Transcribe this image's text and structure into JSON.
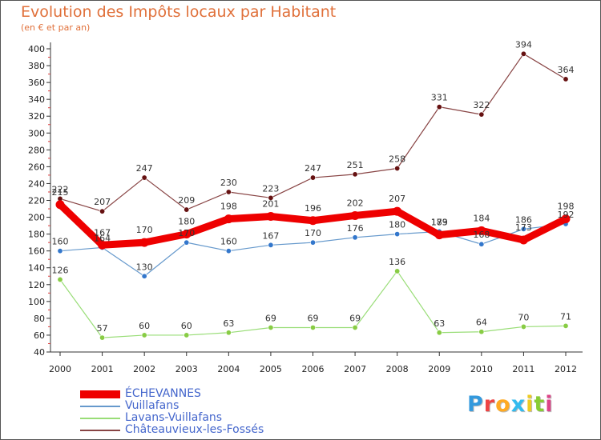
{
  "header": {
    "title": "Evolution des Impôts locaux par Habitant",
    "subtitle": "(en € et par an)"
  },
  "logo": {
    "text": "Proxiti",
    "letter_colors": [
      "#3399dd",
      "#ee4444",
      "#ffaa22",
      "#33bbee",
      "#eecc22",
      "#88cc33",
      "#dd4488"
    ]
  },
  "chart_data": {
    "type": "line",
    "title": "Evolution des Impôts locaux par Habitant",
    "subtitle": "(en € et par an)",
    "xlabel": "",
    "ylabel": "",
    "x": [
      "2000",
      "2001",
      "2002",
      "2003",
      "2004",
      "2005",
      "2006",
      "2007",
      "2008",
      "2009",
      "2010",
      "2011",
      "2012"
    ],
    "ylim": [
      40,
      400
    ],
    "yticks": [
      40,
      60,
      80,
      100,
      120,
      140,
      160,
      180,
      200,
      220,
      240,
      260,
      280,
      300,
      320,
      340,
      360,
      380,
      400
    ],
    "grid": false,
    "legend_position": "bottom-left",
    "series": [
      {
        "name": "ÉCHEVANNES",
        "color": "#ee0000",
        "marker_color": "#ee0000",
        "emphasis": "thick",
        "values": [
          215,
          167,
          170,
          180,
          198,
          201,
          196,
          202,
          207,
          179,
          184,
          173,
          198
        ]
      },
      {
        "name": "Vuillafans",
        "color": "#6699cc",
        "marker_color": "#3377cc",
        "emphasis": "normal",
        "values": [
          160,
          164,
          130,
          170,
          160,
          167,
          170,
          176,
          180,
          183,
          168,
          186,
          192
        ]
      },
      {
        "name": "Lavans-Vuillafans",
        "color": "#99dd77",
        "marker_color": "#88cc44",
        "emphasis": "normal",
        "values": [
          126,
          57,
          60,
          60,
          63,
          69,
          69,
          69,
          136,
          63,
          64,
          70,
          71
        ]
      },
      {
        "name": "Châteauvieux-les-Fossés",
        "color": "#884444",
        "marker_color": "#661111",
        "emphasis": "normal",
        "values": [
          222,
          207,
          247,
          209,
          230,
          223,
          247,
          251,
          258,
          331,
          322,
          394,
          364
        ]
      }
    ],
    "data_labels": [
      {
        "series": 1,
        "index": 0,
        "text": "160",
        "side": "above"
      },
      {
        "series": 0,
        "index": 1,
        "text": "167",
        "side": "above"
      },
      {
        "series": 1,
        "index": 1,
        "text": "164",
        "side": "above"
      },
      {
        "series": 1,
        "index": 2,
        "text": "130",
        "side": "above"
      },
      {
        "series": 1,
        "index": 3,
        "text": "170",
        "side": "above"
      },
      {
        "series": 1,
        "index": 4,
        "text": "160",
        "side": "above"
      },
      {
        "series": 1,
        "index": 5,
        "text": "167",
        "side": "above"
      },
      {
        "series": 1,
        "index": 6,
        "text": "170",
        "side": "above"
      },
      {
        "series": 1,
        "index": 7,
        "text": "176",
        "side": "above"
      },
      {
        "series": 1,
        "index": 8,
        "text": "180",
        "side": "above"
      },
      {
        "series": 1,
        "index": 9,
        "text": "183",
        "side": "above"
      },
      {
        "series": 1,
        "index": 10,
        "text": "168",
        "side": "above"
      },
      {
        "series": 1,
        "index": 11,
        "text": "186",
        "side": "above"
      },
      {
        "series": 1,
        "index": 12,
        "text": "192",
        "side": "above"
      },
      {
        "series": 0,
        "index": 0,
        "text": "215",
        "side": "above"
      },
      {
        "series": 0,
        "index": 2,
        "text": "170",
        "side": "above"
      },
      {
        "series": 0,
        "index": 3,
        "text": "180",
        "side": "above"
      },
      {
        "series": 0,
        "index": 4,
        "text": "198",
        "side": "above"
      },
      {
        "series": 0,
        "index": 5,
        "text": "201",
        "side": "above"
      },
      {
        "series": 0,
        "index": 6,
        "text": "196",
        "side": "above"
      },
      {
        "series": 0,
        "index": 7,
        "text": "202",
        "side": "above"
      },
      {
        "series": 0,
        "index": 8,
        "text": "207",
        "side": "above"
      },
      {
        "series": 0,
        "index": 9,
        "text": "179",
        "side": "above"
      },
      {
        "series": 0,
        "index": 10,
        "text": "184",
        "side": "above"
      },
      {
        "series": 0,
        "index": 11,
        "text": "173",
        "side": "above"
      },
      {
        "series": 0,
        "index": 12,
        "text": "198",
        "side": "above"
      },
      {
        "series": 2,
        "index": 0,
        "text": "126",
        "side": "above"
      },
      {
        "series": 2,
        "index": 1,
        "text": "57",
        "side": "above"
      },
      {
        "series": 2,
        "index": 2,
        "text": "60",
        "side": "above"
      },
      {
        "series": 2,
        "index": 3,
        "text": "60",
        "side": "above"
      },
      {
        "series": 2,
        "index": 4,
        "text": "63",
        "side": "above"
      },
      {
        "series": 2,
        "index": 5,
        "text": "69",
        "side": "above"
      },
      {
        "series": 2,
        "index": 6,
        "text": "69",
        "side": "above"
      },
      {
        "series": 2,
        "index": 7,
        "text": "69",
        "side": "above"
      },
      {
        "series": 2,
        "index": 8,
        "text": "136",
        "side": "above"
      },
      {
        "series": 2,
        "index": 9,
        "text": "63",
        "side": "above"
      },
      {
        "series": 2,
        "index": 10,
        "text": "64",
        "side": "above"
      },
      {
        "series": 2,
        "index": 11,
        "text": "70",
        "side": "above"
      },
      {
        "series": 2,
        "index": 12,
        "text": "71",
        "side": "above"
      },
      {
        "series": 3,
        "index": 0,
        "text": "222",
        "side": "above"
      },
      {
        "series": 3,
        "index": 1,
        "text": "207",
        "side": "above"
      },
      {
        "series": 3,
        "index": 2,
        "text": "247",
        "side": "above"
      },
      {
        "series": 3,
        "index": 3,
        "text": "209",
        "side": "above"
      },
      {
        "series": 3,
        "index": 4,
        "text": "230",
        "side": "above"
      },
      {
        "series": 3,
        "index": 5,
        "text": "223",
        "side": "above"
      },
      {
        "series": 3,
        "index": 6,
        "text": "247",
        "side": "above"
      },
      {
        "series": 3,
        "index": 7,
        "text": "251",
        "side": "above"
      },
      {
        "series": 3,
        "index": 8,
        "text": "258",
        "side": "above"
      },
      {
        "series": 3,
        "index": 9,
        "text": "331",
        "side": "above"
      },
      {
        "series": 3,
        "index": 10,
        "text": "322",
        "side": "above"
      },
      {
        "series": 3,
        "index": 11,
        "text": "394",
        "side": "above"
      },
      {
        "series": 3,
        "index": 12,
        "text": "364",
        "side": "above"
      }
    ]
  }
}
